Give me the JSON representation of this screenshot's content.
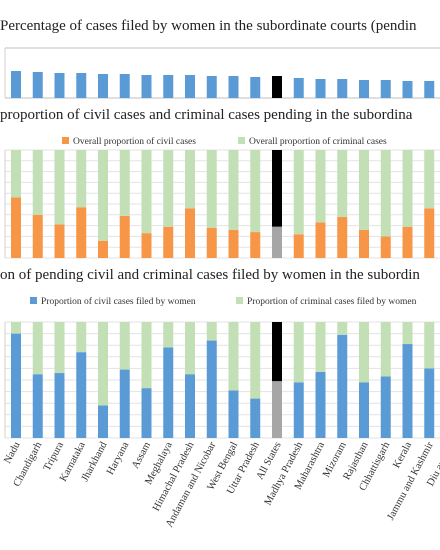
{
  "chart_data": [
    {
      "type": "bar",
      "title": "Percentage of cases filed by women in the subordinate courts (pendin",
      "categories": [
        "Nadu",
        "Chandigarh",
        "Tripura",
        "Karnataka",
        "Jharkhand",
        "Haryana",
        "Assam",
        "Meghalaya",
        "Himachal Pradesh",
        "Andaman and Nicobar",
        "West Bengal",
        "Uttar Pradesh",
        "All States",
        "Madhya Pradesh",
        "Maharashtra",
        "Mizoram",
        "Rajasthan",
        "Chhattisgarh",
        "Kerala",
        "Jammu and Kashmir",
        "Diu and Da"
      ],
      "series": [
        {
          "color": "#5b9bd5",
          "highlight_color": "#000000",
          "values": [
            10.8,
            10.4,
            10,
            10,
            9.6,
            9.6,
            9.2,
            9.2,
            9.2,
            8.8,
            8.8,
            8.4,
            8.8,
            8,
            7.6,
            7.6,
            7.2,
            7.2,
            6.8,
            6.8,
            null
          ]
        }
      ],
      "highlight": 12,
      "ylim": [
        0,
        20
      ],
      "yticks": [
        0,
        20
      ],
      "grid": true
    },
    {
      "type": "stacked_bar",
      "title": "proportion of civil cases and criminal cases pending in the subordina",
      "categories": [
        "Nadu",
        "Chandigarh",
        "Tripura",
        "Karnataka",
        "Jharkhand",
        "Haryana",
        "Assam",
        "Meghalaya",
        "Himachal Pradesh",
        "Andaman and Nicobar",
        "West Bengal",
        "Uttar Pradesh",
        "All States",
        "Madhya Pradesh",
        "Maharashtra",
        "Mizoram",
        "Rajasthan",
        "Chhattisgarh",
        "Kerala",
        "Jammu and Kashmir",
        "Diu and Da"
      ],
      "series": [
        {
          "name": "Overall proportion of civil cases",
          "color": "#f79646",
          "highlight_color": "#a6a6a6",
          "values": [
            56,
            40,
            31,
            47,
            16,
            39,
            23,
            29,
            46,
            28,
            26,
            24,
            29,
            22,
            33,
            38,
            26,
            20,
            29,
            46,
            null
          ]
        },
        {
          "name": "Overall proportion of criminal cases",
          "color": "#c3dfb5",
          "highlight_color": "#000000",
          "values": [
            44,
            60,
            69,
            53,
            84,
            61,
            77,
            71,
            54,
            72,
            74,
            76,
            71,
            78,
            67,
            62,
            74,
            80,
            71,
            54,
            null
          ]
        }
      ],
      "highlight": 12,
      "ylim": [
        0,
        100
      ],
      "yticks": [
        0,
        10,
        20,
        30,
        40,
        50,
        60,
        70,
        80,
        90,
        100
      ],
      "grid": true
    },
    {
      "type": "stacked_bar",
      "title": "on of pending civil and criminal cases filed by women in the subordin",
      "categories": [
        "Nadu",
        "Chandigarh",
        "Tripura",
        "Karnataka",
        "Jharkhand",
        "Haryana",
        "Assam",
        "Meghalaya",
        "Himachal Pradesh",
        "Andaman and Nicobar",
        "West Bengal",
        "Uttar Pradesh",
        "All States",
        "Madhya Pradesh",
        "Maharashtra",
        "Mizoram",
        "Rajasthan",
        "Chhattisgarh",
        "Kerala",
        "Jammu and Kashmir",
        "Diu and Da"
      ],
      "series": [
        {
          "name": "Proportion of civil cases filed by women",
          "color": "#5b9bd5",
          "highlight_color": "#a6a6a6",
          "values": [
            90,
            55,
            56,
            74,
            28,
            59,
            43,
            78,
            55,
            84,
            41,
            34,
            49,
            48,
            57,
            89,
            48,
            53,
            81,
            60,
            null
          ]
        },
        {
          "name": "Proportion of criminal cases filed by women",
          "color": "#c3dfb5",
          "highlight_color": "#000000",
          "values": [
            10,
            45,
            44,
            26,
            72,
            41,
            57,
            22,
            45,
            16,
            59,
            66,
            51,
            52,
            43,
            11,
            52,
            47,
            19,
            40,
            null
          ]
        }
      ],
      "highlight": 12,
      "ylim": [
        0,
        100
      ],
      "yticks": [
        0,
        10,
        20,
        30,
        40,
        50,
        60,
        70,
        80,
        90,
        100
      ],
      "grid": true
    }
  ]
}
